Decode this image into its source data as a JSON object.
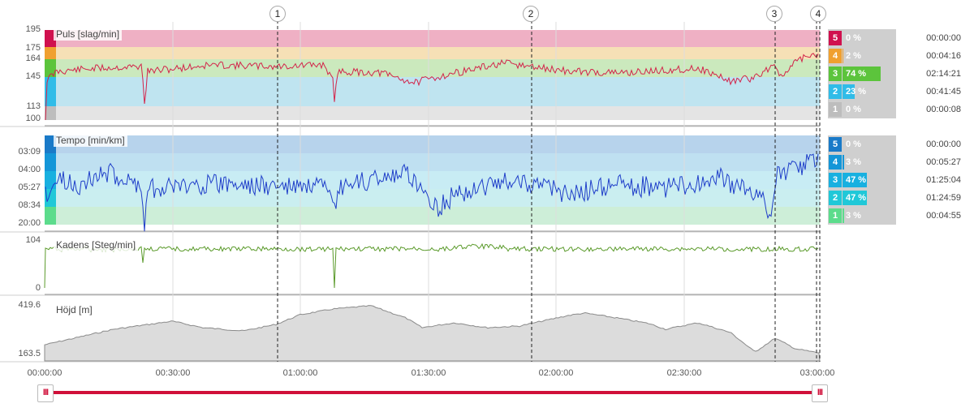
{
  "colors": {
    "accent": "#d0103a",
    "hr_line": "#d3244a",
    "pace_line": "#1f3ec9",
    "cadence_line": "#5a9a2a",
    "elevation_fill": "#dcdcdc"
  },
  "laps": [
    "1",
    "2",
    "3",
    "4"
  ],
  "time_axis": {
    "ticks": [
      "00:00:00",
      "00:30:00",
      "01:00:00",
      "01:30:00",
      "02:00:00",
      "02:30:00",
      "03:00:00"
    ]
  },
  "panels": {
    "heart_rate": {
      "title": "Puls [slag/min]",
      "ticks": [
        "195",
        "175",
        "164",
        "145",
        "113",
        "100"
      ],
      "zones": [
        {
          "num": "5",
          "pct_label": "0 %",
          "pct": 0,
          "time": "00:00:00",
          "color": "#d0104e"
        },
        {
          "num": "4",
          "pct_label": "2 %",
          "pct": 2,
          "time": "00:04:16",
          "color": "#f0a030"
        },
        {
          "num": "3",
          "pct_label": "74 %",
          "pct": 74,
          "time": "02:14:21",
          "color": "#5cc43c"
        },
        {
          "num": "2",
          "pct_label": "23 %",
          "pct": 23,
          "time": "00:41:45",
          "color": "#30bce8"
        },
        {
          "num": "1",
          "pct_label": "0 %",
          "pct": 0,
          "time": "00:00:08",
          "color": "#bdbdbd"
        }
      ]
    },
    "pace": {
      "title": "Tempo [min/km]",
      "ticks": [
        "03:09",
        "04:00",
        "05:27",
        "08:34",
        "20:00"
      ],
      "zones": [
        {
          "num": "5",
          "pct_label": "0 %",
          "pct": 0,
          "time": "00:00:00",
          "color": "#1a7ac8"
        },
        {
          "num": "4",
          "pct_label": "3 %",
          "pct": 3,
          "time": "00:05:27",
          "color": "#1496d8"
        },
        {
          "num": "3",
          "pct_label": "47 %",
          "pct": 47,
          "time": "01:25:04",
          "color": "#18b0e0"
        },
        {
          "num": "2",
          "pct_label": "47 %",
          "pct": 47,
          "time": "01:24:59",
          "color": "#20c8d8"
        },
        {
          "num": "1",
          "pct_label": "3 %",
          "pct": 3,
          "time": "00:04:55",
          "color": "#5cdc8c"
        }
      ]
    },
    "cadence": {
      "title": "Kadens [Steg/min]",
      "ticks": [
        "104",
        "0"
      ]
    },
    "elevation": {
      "title": "Höjd [m]",
      "ticks": [
        "419.6",
        "163.5"
      ]
    }
  },
  "range_slider": {
    "left_handle": "III",
    "right_handle": "III"
  }
}
